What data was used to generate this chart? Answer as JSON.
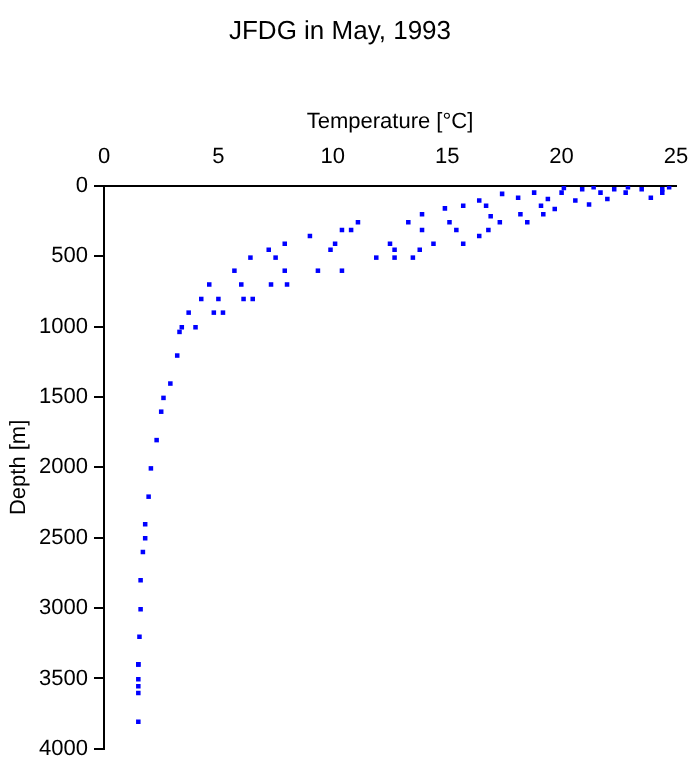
{
  "chart_data": {
    "type": "scatter",
    "title": "JFDG in May, 1993",
    "xlabel": "Temperature [°C]",
    "ylabel": "Depth [m]",
    "x": [
      1.5,
      1.5,
      1.5,
      1.5,
      1.5,
      1.5,
      1.55,
      1.6,
      1.6,
      1.7,
      1.8,
      1.8,
      1.95,
      2.05,
      2.3,
      2.5,
      2.6,
      2.9,
      3.2,
      3.3,
      3.4,
      4.0,
      3.7,
      4.25,
      4.8,
      5.2,
      4.6,
      5.0,
      5.7,
      6.0,
      6.1,
      6.5,
      6.4,
      7.2,
      7.5,
      7.3,
      8.0,
      7.9,
      7.9,
      9.0,
      9.35,
      10.4,
      9.9,
      10.1,
      10.4,
      11.1,
      10.8,
      11.9,
      12.7,
      13.5,
      12.5,
      12.7,
      13.3,
      13.9,
      13.9,
      13.8,
      14.4,
      15.7,
      15.1,
      15.4,
      14.9,
      15.7,
      16.4,
      16.8,
      16.4,
      16.7,
      16.9,
      17.3,
      18.5,
      17.4,
      18.1,
      18.2,
      19.2,
      18.8,
      19.1,
      19.4,
      19.7,
      20.0,
      20.6,
      20.9,
      21.2,
      21.7,
      22.3,
      22.0,
      22.8,
      23.5,
      23.9,
      24.4,
      24.7,
      20.1,
      21.4,
      22.9,
      24.4
    ],
    "values": [
      3808,
      3603,
      3556,
      3505,
      3400,
      3400,
      3204,
      3008,
      2802,
      2601,
      2503,
      2404,
      2208,
      2007,
      1806,
      1604,
      1506,
      1404,
      1205,
      1037,
      1004,
      1004,
      900,
      803,
      900,
      900,
      700,
      803,
      602,
      700,
      803,
      803,
      509,
      453,
      509,
      700,
      700,
      602,
      411,
      355,
      602,
      602,
      453,
      411,
      313,
      257,
      313,
      509,
      509,
      509,
      411,
      453,
      257,
      201,
      313,
      453,
      411,
      411,
      257,
      313,
      159,
      140,
      355,
      313,
      103,
      140,
      215,
      257,
      257,
      56,
      84,
      201,
      201,
      47,
      140,
      93,
      163,
      47,
      103,
      23,
      131,
      47,
      23,
      93,
      47,
      23,
      84,
      23,
      9,
      14,
      9,
      9,
      47
    ],
    "color": "#0000ff",
    "marker": "square",
    "xlim": [
      0,
      25
    ],
    "xticks": [
      0,
      5,
      10,
      15,
      20,
      25
    ],
    "ylim": [
      4000,
      0
    ],
    "yticks": [
      0,
      500,
      1000,
      1500,
      2000,
      2500,
      3000,
      3500,
      4000
    ]
  }
}
